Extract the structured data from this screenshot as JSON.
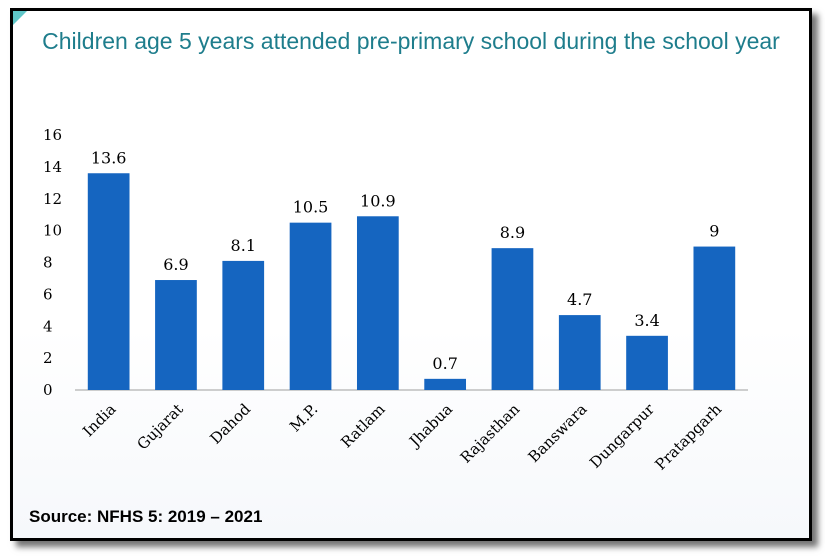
{
  "chart_data": {
    "type": "bar",
    "title": "Children age 5 years attended pre-primary school during the school year",
    "categories": [
      "India",
      "Gujarat",
      "Dahod",
      "M.P.",
      "Ratlam",
      "Jhabua",
      "Rajasthan",
      "Banswara",
      "Dungarpur",
      "Pratapgarh"
    ],
    "values": [
      13.6,
      6.9,
      8.1,
      10.5,
      10.9,
      0.7,
      8.9,
      4.7,
      3.4,
      9
    ],
    "data_labels": [
      "13.6",
      "6.9",
      "8.1",
      "10.5",
      "10.9",
      "0.7",
      "8.9",
      "4.7",
      "3.4",
      "9"
    ],
    "y_ticks": [
      "0",
      "2",
      "4",
      "6",
      "8",
      "10",
      "12",
      "14",
      "16"
    ],
    "ylim": [
      0,
      16
    ],
    "grid": false,
    "bar_color": "#1565c0",
    "xlabel": "",
    "ylabel": ""
  },
  "source_note": "Source: NFHS 5: 2019 – 2021"
}
